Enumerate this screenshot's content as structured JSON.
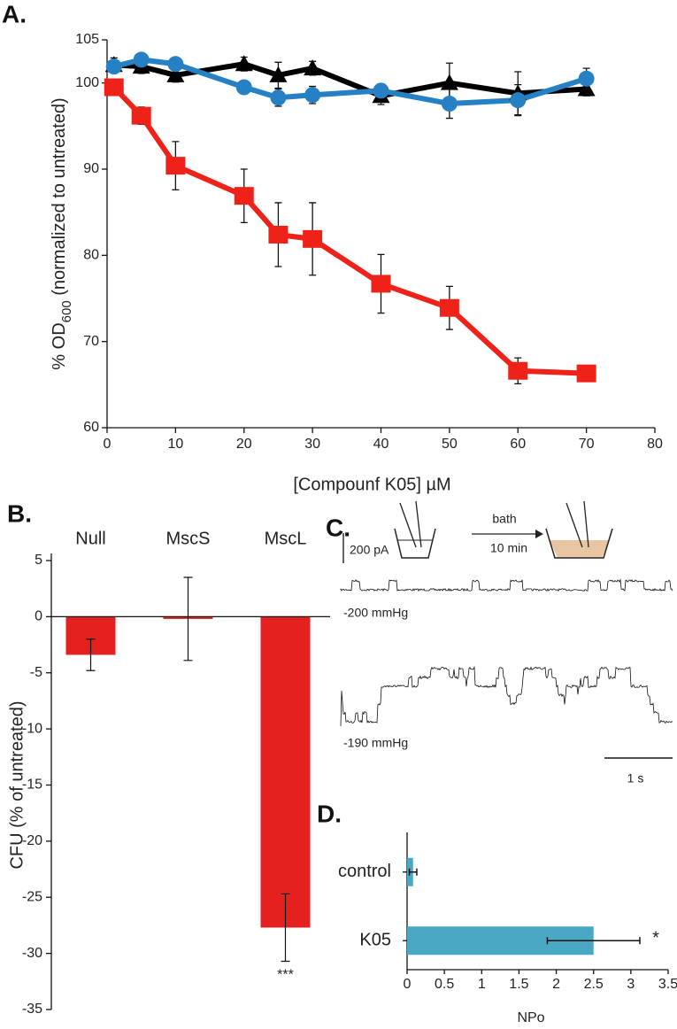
{
  "chart_data": [
    {
      "type": "line",
      "panel": "A.",
      "xlabel": "[Compounf K05] µM",
      "ylabel": "% OD",
      "ylabel_sub": "600",
      "ylabel_rest": " (normalized to untreated)",
      "x": [
        1,
        5,
        10,
        20,
        25,
        30,
        40,
        50,
        60,
        70
      ],
      "series": [
        {
          "color": "#000000",
          "marker": "triangle",
          "values": [
            102.1,
            101.9,
            100.9,
            102.2,
            100.9,
            101.7,
            98.5,
            100.0,
            98.8,
            99.3
          ],
          "errors": [
            0.8,
            0.8,
            0.8,
            0.8,
            1.5,
            0.8,
            1.0,
            2.3,
            2.5,
            0.8
          ]
        },
        {
          "color": "#2581c4",
          "marker": "circle",
          "values": [
            101.9,
            102.7,
            102.2,
            99.5,
            98.3,
            98.6,
            99.1,
            97.6,
            98.0,
            100.5
          ],
          "errors": [
            0.6,
            0.6,
            0.6,
            0.5,
            1.0,
            1.0,
            0.8,
            1.7,
            1.8,
            1.2
          ]
        },
        {
          "color": "#ee2219",
          "marker": "square",
          "values": [
            99.5,
            96.2,
            90.4,
            86.9,
            82.4,
            81.9,
            76.7,
            73.9,
            66.6,
            66.3
          ],
          "errors": [
            0.4,
            1.0,
            2.8,
            3.1,
            3.7,
            4.2,
            3.4,
            2.5,
            1.5,
            0.4
          ]
        }
      ],
      "xlim": [
        0,
        80
      ],
      "xticks": [
        0,
        10,
        20,
        30,
        40,
        50,
        60,
        70,
        80
      ],
      "ylim": [
        60,
        105
      ],
      "yticks": [
        60,
        70,
        80,
        90,
        100,
        105
      ]
    },
    {
      "type": "bar",
      "panel": "B.",
      "ylabel": "CFU (% of untreated)",
      "categories": [
        "Null",
        "MscS",
        "MscL"
      ],
      "values": [
        -3.4,
        -0.2,
        -27.7
      ],
      "errors": [
        1.4,
        3.7,
        3.0
      ],
      "value_annotations": [
        null,
        null,
        "***"
      ],
      "color": "#e5211f",
      "ylim": [
        -35,
        5
      ],
      "yticks": [
        5,
        0,
        -5,
        -10,
        -15,
        -20,
        -25,
        -30,
        -35
      ]
    },
    {
      "type": "hbar",
      "panel": "D.",
      "xlabel": "NPo",
      "categories": [
        "control",
        "K05"
      ],
      "values": [
        0.08,
        2.5
      ],
      "errors": [
        0.05,
        0.62
      ],
      "value_annotations": [
        null,
        "*"
      ],
      "color": "#4aa8c5",
      "xlim": [
        0,
        3.5
      ],
      "xticks": [
        0,
        0.5,
        1,
        1.5,
        2,
        2.5,
        3,
        3.5
      ]
    }
  ],
  "panel_c": {
    "panel": "C.",
    "arrow_label": "bath",
    "arrow_sublabel": "10 min",
    "current_scale": "200 pA",
    "trace_1_label": "-200 mmHg",
    "trace_2_label": "-190 mmHg",
    "time_scale": "1 s"
  }
}
